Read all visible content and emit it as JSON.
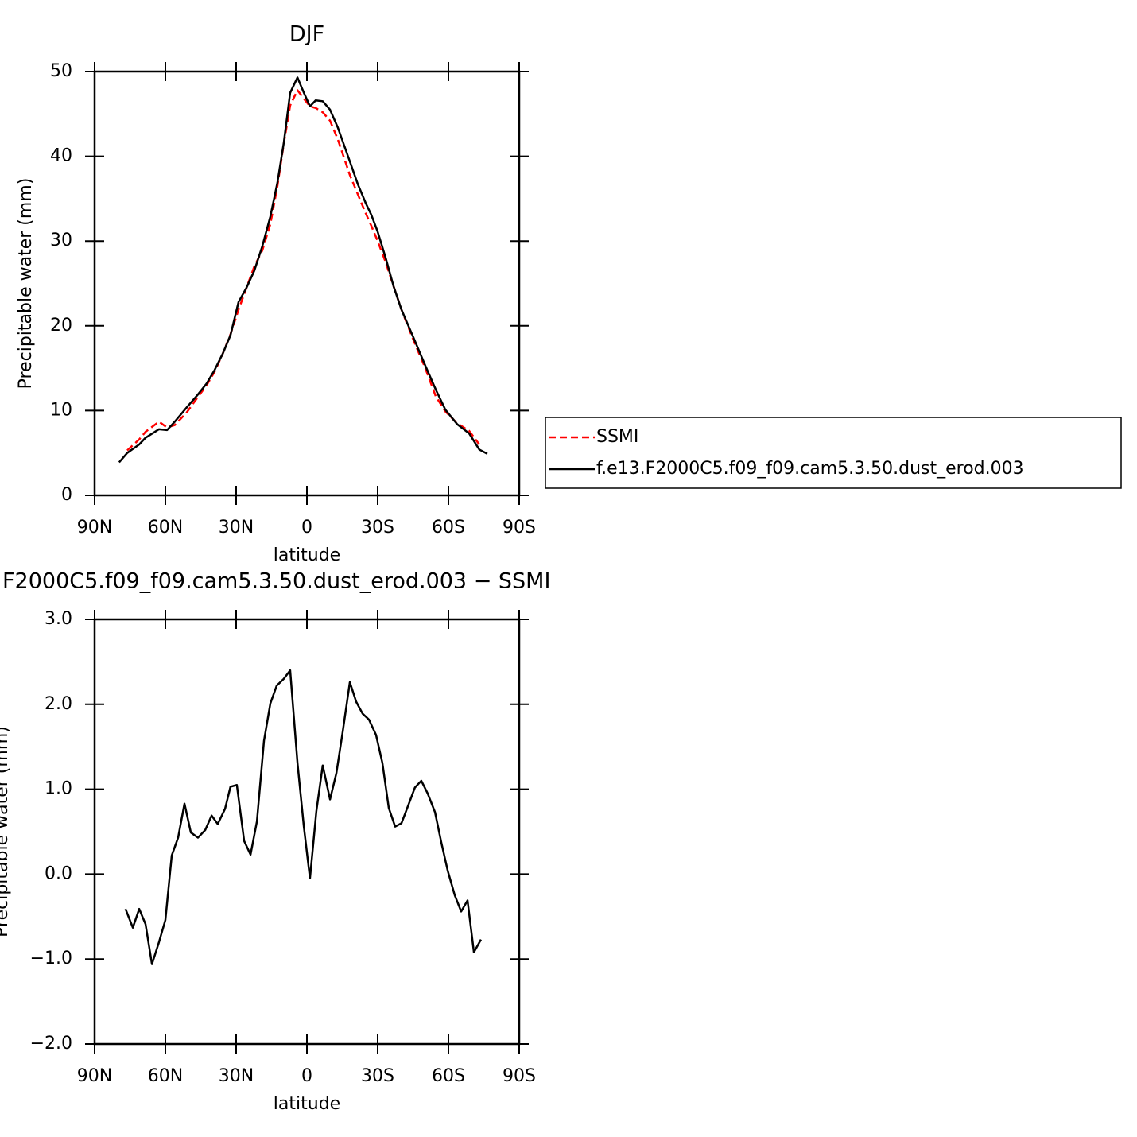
{
  "chart_data": [
    {
      "type": "line",
      "title": "DJF",
      "ylabel": "Precipitable water (mm)",
      "xlabel": "latitude",
      "x": [
        79.6,
        76.2,
        71.1,
        68.4,
        62.7,
        59.3,
        56.0,
        50.9,
        46.5,
        42.5,
        39.1,
        35.7,
        32.4,
        29.0,
        25.6,
        22.3,
        18.9,
        15.5,
        12.5,
        9.8,
        7.1,
        4.0,
        1.3,
        -1.3,
        -3.7,
        -6.7,
        -9.8,
        -13.1,
        -18.2,
        -21.6,
        -24.9,
        -27.3,
        -30.0,
        -33.4,
        -36.7,
        -40.1,
        -45.2,
        -50.2,
        -54.6,
        -58.7,
        -63.7,
        -68.8,
        -73.1,
        -76.5
      ],
      "series": [
        {
          "name": "SSMI",
          "color": "#ff0000",
          "linestyle": "dashed",
          "values": [
            null,
            5.3,
            6.6,
            7.5,
            8.7,
            8.0,
            8.3,
            9.8,
            11.5,
            13.0,
            14.6,
            16.7,
            19.0,
            21.9,
            24.5,
            27.0,
            28.9,
            32.0,
            36.5,
            41.5,
            46.0,
            47.8,
            46.8,
            45.9,
            45.7,
            45.2,
            44.2,
            42.0,
            37.8,
            35.5,
            33.3,
            31.8,
            30.0,
            27.5,
            24.7,
            21.9,
            18.3,
            15.0,
            11.7,
            9.9,
            8.5,
            7.6,
            6.0,
            null
          ]
        },
        {
          "name": "f.e13.F2000C5.f09_f09.cam5.3.50.dust_erod.003",
          "color": "#000000",
          "linestyle": "solid",
          "values": [
            3.9,
            5.0,
            6.0,
            6.8,
            7.8,
            7.7,
            8.7,
            10.4,
            11.8,
            13.2,
            14.8,
            16.7,
            18.9,
            22.8,
            24.5,
            26.5,
            29.4,
            32.9,
            36.9,
            41.6,
            47.5,
            49.3,
            47.5,
            45.9,
            46.6,
            46.5,
            45.5,
            43.4,
            39.4,
            36.7,
            34.5,
            33.1,
            31.1,
            28.0,
            24.7,
            21.9,
            18.6,
            15.3,
            12.5,
            10.1,
            8.4,
            7.3,
            5.4,
            4.9
          ]
        }
      ],
      "xlim": [
        90,
        -90
      ],
      "xticks": [
        {
          "value": 90,
          "label": "90N"
        },
        {
          "value": 60,
          "label": "60N"
        },
        {
          "value": 30,
          "label": "30N"
        },
        0,
        {
          "value": -30,
          "label": "30S"
        },
        {
          "value": -60,
          "label": "60S"
        },
        {
          "value": -90,
          "label": "90S"
        }
      ],
      "ylim": [
        0,
        50
      ],
      "yticks": [
        0,
        10,
        20,
        30,
        40,
        50
      ],
      "legend": "outside-right"
    },
    {
      "type": "line",
      "title": "F2000C5.f09_f09.cam5.3.50.dust_erod.003 − SSMI",
      "ylabel": "Precipitable water (mm)",
      "xlabel": "latitude",
      "x": [
        76.9,
        73.8,
        71.1,
        68.4,
        65.7,
        62.7,
        60.0,
        57.3,
        54.6,
        51.9,
        49.2,
        46.2,
        43.1,
        40.4,
        37.8,
        34.7,
        32.4,
        29.7,
        26.6,
        23.9,
        21.2,
        18.2,
        15.5,
        12.8,
        9.8,
        7.1,
        4.0,
        1.3,
        -1.3,
        -4.0,
        -6.7,
        -9.8,
        -12.5,
        -15.2,
        -18.2,
        -20.9,
        -23.6,
        -26.3,
        -29.3,
        -32.0,
        -34.7,
        -37.4,
        -40.1,
        -43.1,
        -45.8,
        -48.5,
        -51.2,
        -54.3,
        -57.0,
        -59.7,
        -62.7,
        -65.4,
        -68.1,
        -70.8,
        -73.8
      ],
      "series": [
        {
          "color": "#000000",
          "linestyle": "solid",
          "values": [
            -0.41,
            -0.63,
            -0.41,
            -0.59,
            -1.06,
            -0.8,
            -0.54,
            0.22,
            0.43,
            0.83,
            0.49,
            0.43,
            0.52,
            0.69,
            0.59,
            0.77,
            1.03,
            1.05,
            0.39,
            0.23,
            0.62,
            1.57,
            2.01,
            2.22,
            2.3,
            2.4,
            1.31,
            0.56,
            -0.05,
            0.74,
            1.28,
            0.88,
            1.19,
            1.68,
            2.26,
            2.03,
            1.89,
            1.82,
            1.64,
            1.31,
            0.78,
            0.56,
            0.6,
            0.82,
            1.02,
            1.1,
            0.95,
            0.73,
            0.37,
            0.04,
            -0.25,
            -0.44,
            -0.31,
            -0.92,
            -0.77
          ]
        }
      ],
      "xlim": [
        90,
        -90
      ],
      "xticks": [
        {
          "value": 90,
          "label": "90N"
        },
        {
          "value": 60,
          "label": "60N"
        },
        {
          "value": 30,
          "label": "30N"
        },
        0,
        {
          "value": -30,
          "label": "30S"
        },
        {
          "value": -60,
          "label": "60S"
        },
        {
          "value": -90,
          "label": "90S"
        }
      ],
      "ylim": [
        -2,
        3
      ],
      "yticks": [
        {
          "value": -2,
          "label": "−2.0"
        },
        {
          "value": -1,
          "label": "−1.0"
        },
        {
          "value": 0,
          "label": "0.0"
        },
        {
          "value": 1,
          "label": "1.0"
        },
        {
          "value": 2,
          "label": "2.0"
        },
        {
          "value": 3,
          "label": "3.0"
        }
      ]
    }
  ]
}
